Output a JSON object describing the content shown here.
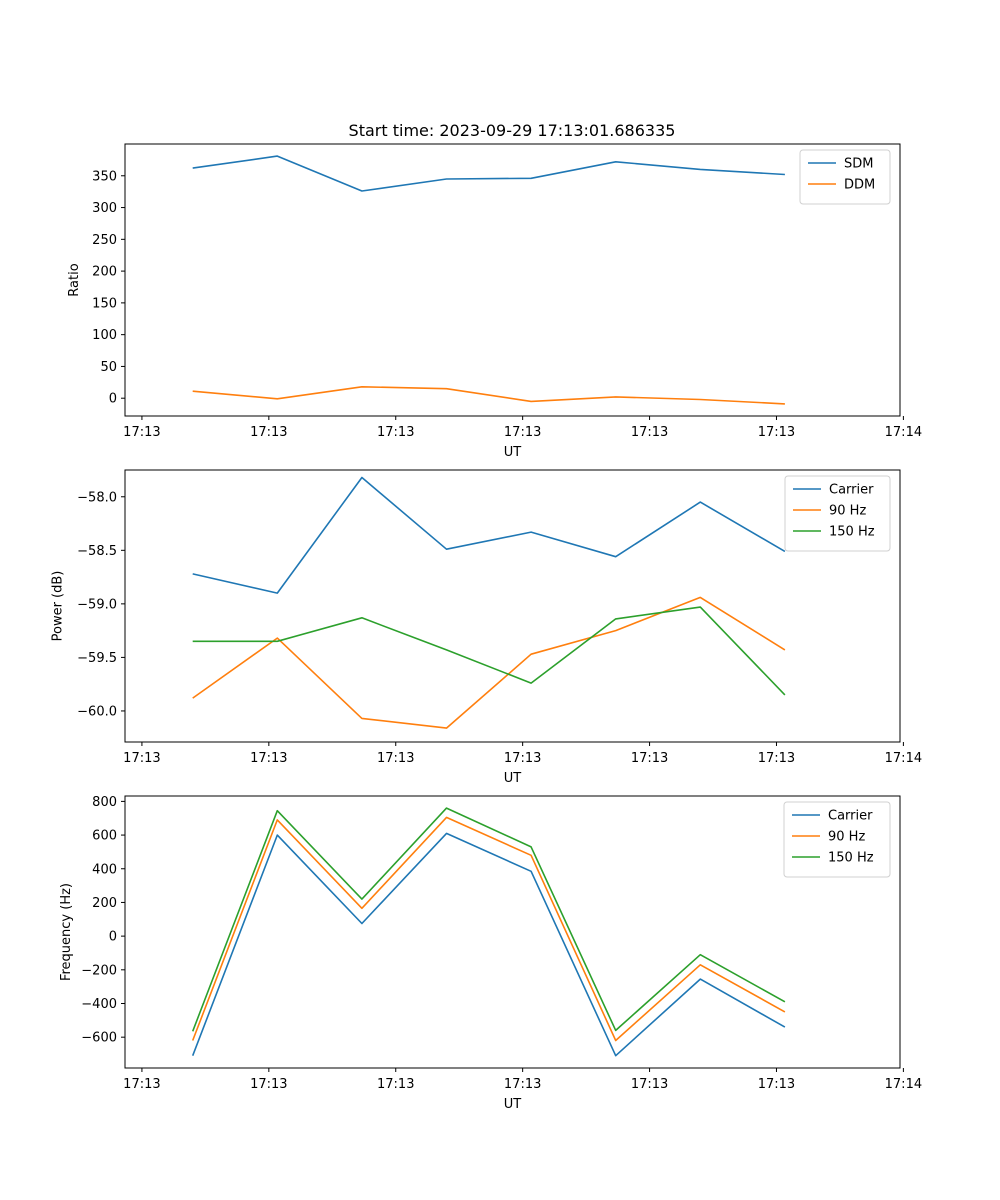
{
  "figure_title": "Start time: 2023-09-29 17:13:01.686335",
  "colors": {
    "blue": "#1f77b4",
    "orange": "#ff7f0e",
    "green": "#2ca02c"
  },
  "chart_data": [
    {
      "type": "line",
      "title": "Start time: 2023-09-29 17:13:01.686335",
      "xlabel": "UT",
      "ylabel": "Ratio",
      "x": [
        1,
        2,
        3,
        4,
        5,
        6,
        7,
        8
      ],
      "xlim": [
        0.2,
        9.36
      ],
      "xticks": [
        0.4,
        1.9,
        3.4,
        4.9,
        6.4,
        7.9,
        9.4
      ],
      "xticklabels": [
        "17:13",
        "17:13",
        "17:13",
        "17:13",
        "17:13",
        "17:13",
        "17:14"
      ],
      "ylim": [
        -28,
        400
      ],
      "yticks": [
        0,
        50,
        100,
        150,
        200,
        250,
        300,
        350
      ],
      "yticklabels": [
        "0",
        "50",
        "100",
        "150",
        "200",
        "250",
        "300",
        "350"
      ],
      "legend_position": "top-right",
      "series": [
        {
          "name": "SDM",
          "color": "#1f77b4",
          "values": [
            362,
            381,
            326,
            345,
            346,
            372,
            360,
            352
          ]
        },
        {
          "name": "DDM",
          "color": "#ff7f0e",
          "values": [
            11,
            -1,
            18,
            15,
            -5,
            2,
            -2,
            -9
          ]
        }
      ]
    },
    {
      "type": "line",
      "title": "",
      "xlabel": "UT",
      "ylabel": "Power (dB)",
      "x": [
        1,
        2,
        3,
        4,
        5,
        6,
        7,
        8
      ],
      "xlim": [
        0.2,
        9.36
      ],
      "xticks": [
        0.4,
        1.9,
        3.4,
        4.9,
        6.4,
        7.9,
        9.4
      ],
      "xticklabels": [
        "17:13",
        "17:13",
        "17:13",
        "17:13",
        "17:13",
        "17:13",
        "17:14"
      ],
      "ylim": [
        -60.29,
        -57.75
      ],
      "yticks": [
        -60.0,
        -59.5,
        -59.0,
        -58.5,
        -58.0
      ],
      "yticklabels": [
        "−60.0",
        "−59.5",
        "−59.0",
        "−58.5",
        "−58.0"
      ],
      "legend_position": "top-right",
      "series": [
        {
          "name": "Carrier",
          "color": "#1f77b4",
          "values": [
            -58.72,
            -58.9,
            -57.82,
            -58.49,
            -58.33,
            -58.56,
            -58.05,
            -58.51
          ]
        },
        {
          "name": "90 Hz",
          "color": "#ff7f0e",
          "values": [
            -59.88,
            -59.32,
            -60.07,
            -60.16,
            -59.47,
            -59.25,
            -58.94,
            -59.43
          ]
        },
        {
          "name": "150 Hz",
          "color": "#2ca02c",
          "values": [
            -59.35,
            -59.35,
            -59.13,
            -59.43,
            -59.74,
            -59.14,
            -59.03,
            -59.85
          ]
        }
      ]
    },
    {
      "type": "line",
      "title": "",
      "xlabel": "UT",
      "ylabel": "Frequency (Hz)",
      "x": [
        1,
        2,
        3,
        4,
        5,
        6,
        7,
        8
      ],
      "xlim": [
        0.2,
        9.36
      ],
      "xticks": [
        0.4,
        1.9,
        3.4,
        4.9,
        6.4,
        7.9,
        9.4
      ],
      "xticklabels": [
        "17:13",
        "17:13",
        "17:13",
        "17:13",
        "17:13",
        "17:13",
        "17:14"
      ],
      "ylim": [
        -783,
        832
      ],
      "yticks": [
        -600,
        -400,
        -200,
        0,
        200,
        400,
        600,
        800
      ],
      "yticklabels": [
        "−600",
        "−400",
        "−200",
        "0",
        "200",
        "400",
        "600",
        "800"
      ],
      "legend_position": "top-right",
      "series": [
        {
          "name": "Carrier",
          "color": "#1f77b4",
          "values": [
            -710,
            600,
            75,
            610,
            385,
            -710,
            -255,
            -540
          ]
        },
        {
          "name": "90 Hz",
          "color": "#ff7f0e",
          "values": [
            -620,
            690,
            165,
            705,
            480,
            -620,
            -170,
            -450
          ]
        },
        {
          "name": "150 Hz",
          "color": "#2ca02c",
          "values": [
            -565,
            745,
            220,
            760,
            530,
            -560,
            -110,
            -390
          ]
        }
      ]
    }
  ]
}
